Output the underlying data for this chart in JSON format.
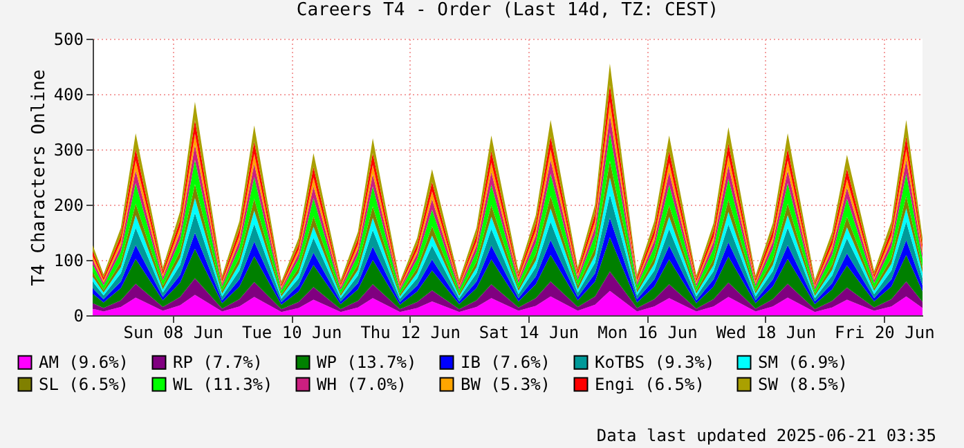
{
  "chart_data": {
    "type": "area",
    "stacked": true,
    "title": "Careers T4 - Order (Last 14d, TZ: CEST)",
    "ylabel": "T4 Characters Online",
    "x": [
      "2025-06-07T03:35",
      "2025-06-07T08:00",
      "2025-06-07T15:00",
      "2025-06-07T21:00",
      "2025-06-08T08:00",
      "2025-06-08T15:00",
      "2025-06-08T21:00",
      "2025-06-09T08:00",
      "2025-06-09T15:00",
      "2025-06-09T21:00",
      "2025-06-10T08:00",
      "2025-06-10T15:00",
      "2025-06-10T21:00",
      "2025-06-11T08:00",
      "2025-06-11T15:00",
      "2025-06-11T21:00",
      "2025-06-12T08:00",
      "2025-06-12T15:00",
      "2025-06-12T21:00",
      "2025-06-13T08:00",
      "2025-06-13T15:00",
      "2025-06-13T21:00",
      "2025-06-14T08:00",
      "2025-06-14T15:00",
      "2025-06-14T21:00",
      "2025-06-15T08:00",
      "2025-06-15T15:00",
      "2025-06-15T21:00",
      "2025-06-16T08:00",
      "2025-06-16T15:00",
      "2025-06-16T21:00",
      "2025-06-17T08:00",
      "2025-06-17T15:00",
      "2025-06-17T21:00",
      "2025-06-18T08:00",
      "2025-06-18T15:00",
      "2025-06-18T21:00",
      "2025-06-19T08:00",
      "2025-06-19T15:00",
      "2025-06-19T21:00",
      "2025-06-20T08:00",
      "2025-06-20T15:00",
      "2025-06-20T21:00",
      "2025-06-21T03:35"
    ],
    "series": [
      {
        "name": "AM (9.6%)",
        "color": "#ff00ff",
        "values": [
          12,
          7,
          15,
          32,
          8,
          18,
          37,
          7,
          16,
          33,
          6,
          13,
          28,
          6,
          14,
          31,
          6,
          13,
          25,
          6,
          15,
          31,
          8,
          17,
          34,
          8,
          19,
          44,
          7,
          16,
          31,
          7,
          16,
          33,
          7,
          16,
          32,
          6,
          14,
          28,
          8,
          16,
          34,
          13
        ]
      },
      {
        "name": "RP (7.7%)",
        "color": "#800080",
        "values": [
          10,
          6,
          12,
          25,
          7,
          15,
          30,
          5,
          13,
          27,
          5,
          11,
          23,
          5,
          12,
          25,
          5,
          11,
          20,
          5,
          12,
          25,
          6,
          14,
          27,
          7,
          15,
          35,
          6,
          13,
          25,
          5,
          13,
          26,
          5,
          13,
          25,
          5,
          12,
          22,
          6,
          13,
          27,
          11
        ]
      },
      {
        "name": "WP (13.7%)",
        "color": "#008000",
        "values": [
          17,
          10,
          22,
          45,
          12,
          26,
          53,
          10,
          23,
          47,
          8,
          19,
          40,
          9,
          21,
          44,
          8,
          19,
          36,
          9,
          22,
          45,
          11,
          25,
          48,
          12,
          27,
          62,
          10,
          23,
          45,
          10,
          23,
          47,
          10,
          23,
          45,
          9,
          21,
          40,
          11,
          23,
          48,
          19
        ]
      },
      {
        "name": "IB (7.6%)",
        "color": "#0000ff",
        "values": [
          10,
          6,
          12,
          25,
          6,
          14,
          29,
          5,
          13,
          26,
          5,
          11,
          22,
          5,
          11,
          24,
          5,
          11,
          20,
          5,
          12,
          25,
          6,
          14,
          27,
          6,
          15,
          35,
          6,
          13,
          25,
          5,
          13,
          26,
          5,
          13,
          25,
          5,
          11,
          22,
          6,
          13,
          27,
          11
        ]
      },
      {
        "name": "KoTBS (9.3%)",
        "color": "#009999",
        "values": [
          12,
          7,
          15,
          31,
          8,
          18,
          36,
          7,
          16,
          32,
          6,
          13,
          27,
          6,
          14,
          30,
          6,
          13,
          25,
          6,
          15,
          30,
          7,
          17,
          33,
          8,
          19,
          42,
          7,
          16,
          30,
          7,
          15,
          32,
          7,
          15,
          31,
          6,
          14,
          27,
          7,
          16,
          33,
          13
        ]
      },
      {
        "name": "SM (6.9%)",
        "color": "#00ffff",
        "values": [
          9,
          5,
          11,
          23,
          6,
          13,
          27,
          5,
          12,
          24,
          4,
          10,
          20,
          4,
          10,
          22,
          4,
          10,
          18,
          4,
          11,
          22,
          6,
          12,
          24,
          6,
          14,
          31,
          5,
          12,
          22,
          5,
          11,
          23,
          5,
          11,
          23,
          4,
          10,
          20,
          6,
          12,
          24,
          10
        ]
      },
      {
        "name": "SL (6.5%)",
        "color": "#808000",
        "values": [
          8,
          5,
          10,
          21,
          6,
          12,
          25,
          5,
          11,
          22,
          4,
          9,
          19,
          4,
          10,
          21,
          4,
          9,
          17,
          4,
          10,
          21,
          5,
          12,
          23,
          6,
          13,
          30,
          5,
          11,
          21,
          5,
          11,
          22,
          5,
          11,
          21,
          4,
          10,
          19,
          5,
          11,
          23,
          9
        ]
      },
      {
        "name": "WL (11.3%)",
        "color": "#00ff00",
        "values": [
          14,
          8,
          18,
          37,
          10,
          21,
          44,
          8,
          19,
          39,
          7,
          16,
          33,
          7,
          17,
          36,
          7,
          16,
          30,
          7,
          18,
          37,
          9,
          20,
          40,
          10,
          23,
          51,
          8,
          19,
          37,
          8,
          19,
          38,
          8,
          19,
          37,
          7,
          17,
          33,
          9,
          19,
          40,
          16
        ]
      },
      {
        "name": "WH (7.0%)",
        "color": "#cc1f80",
        "values": [
          9,
          5,
          11,
          23,
          6,
          13,
          27,
          5,
          12,
          24,
          4,
          10,
          21,
          5,
          11,
          22,
          4,
          10,
          19,
          5,
          11,
          23,
          6,
          13,
          25,
          6,
          14,
          32,
          5,
          12,
          23,
          5,
          12,
          24,
          5,
          12,
          23,
          5,
          11,
          20,
          6,
          12,
          25,
          10
        ]
      },
      {
        "name": "BW (5.3%)",
        "color": "#ffa500",
        "values": [
          7,
          4,
          8,
          18,
          5,
          10,
          20,
          4,
          9,
          18,
          3,
          7,
          16,
          3,
          8,
          17,
          3,
          7,
          14,
          3,
          8,
          17,
          4,
          10,
          19,
          5,
          11,
          24,
          4,
          9,
          17,
          4,
          9,
          18,
          4,
          9,
          18,
          3,
          8,
          15,
          4,
          9,
          19,
          7
        ]
      },
      {
        "name": "Engi (6.5%)",
        "color": "#ff0000",
        "values": [
          8,
          5,
          10,
          21,
          6,
          12,
          25,
          5,
          11,
          22,
          4,
          9,
          19,
          4,
          10,
          21,
          4,
          9,
          17,
          4,
          10,
          21,
          5,
          12,
          23,
          6,
          13,
          30,
          5,
          11,
          21,
          5,
          11,
          22,
          5,
          11,
          21,
          4,
          10,
          19,
          5,
          11,
          23,
          9
        ]
      },
      {
        "name": "SW (8.5%)",
        "color": "#aaa000",
        "values": [
          11,
          6,
          14,
          28,
          7,
          16,
          33,
          6,
          15,
          29,
          5,
          12,
          25,
          6,
          13,
          27,
          5,
          12,
          23,
          6,
          14,
          28,
          7,
          15,
          30,
          7,
          17,
          39,
          6,
          15,
          28,
          6,
          14,
          29,
          6,
          14,
          28,
          6,
          13,
          25,
          7,
          15,
          30,
          12
        ]
      }
    ],
    "xlim": [
      "2025-06-07T03:35",
      "2025-06-21T03:35"
    ],
    "xticks": [
      {
        "value": "2025-06-08T12:00",
        "label": "Sun 08 Jun"
      },
      {
        "value": "2025-06-10T12:00",
        "label": "Tue 10 Jun"
      },
      {
        "value": "2025-06-12T12:00",
        "label": "Thu 12 Jun"
      },
      {
        "value": "2025-06-14T12:00",
        "label": "Sat 14 Jun"
      },
      {
        "value": "2025-06-16T12:00",
        "label": "Mon 16 Jun"
      },
      {
        "value": "2025-06-18T12:00",
        "label": "Wed 18 Jun"
      },
      {
        "value": "2025-06-20T12:00",
        "label": "Fri 20 Jun"
      }
    ],
    "ylim": [
      0,
      500
    ],
    "yticks": [
      0,
      100,
      200,
      300,
      400,
      500
    ],
    "grid": true,
    "legend": "bottom",
    "annotations": [
      "Data last updated 2025-06-21 03:35"
    ]
  }
}
